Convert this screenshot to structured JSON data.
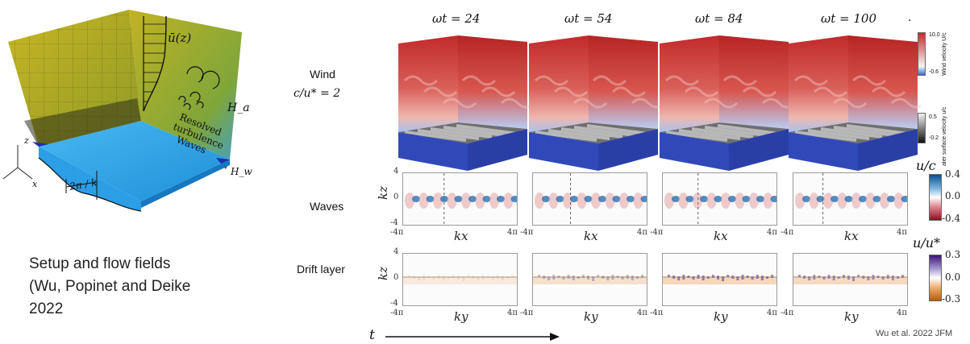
{
  "setup": {
    "labels": {
      "profile": "ū(z)",
      "resolved": "Resolved",
      "turbulence": "turbulence",
      "waves": "Waves",
      "Ha": "H_a",
      "Hw": "H_w",
      "wavelength": "2π / k",
      "axis_z": "z",
      "axis_x": "x"
    },
    "colors": {
      "box_wall": "#b8ae22",
      "water": "#2ea4e8"
    }
  },
  "caption": {
    "line1": "Setup and flow fields",
    "line2": "(Wu, Popinet and Deike",
    "line3": "2022"
  },
  "times": [
    "ωt = 24",
    "ωt = 54",
    "ωt = 84",
    "ωt = 100"
  ],
  "rows": {
    "wind": {
      "label": "Wind",
      "sublabel": "c/u* = 2"
    },
    "waves": {
      "label": "Waves"
    },
    "drift": {
      "label": "Drift layer"
    }
  },
  "axes": {
    "waves": {
      "ylabel": "kz",
      "xlabel": "kx",
      "yticks": [
        "4",
        "0",
        "-4"
      ],
      "xmin": "-4π",
      "xmax": "4π"
    },
    "drift": {
      "ylabel": "kz",
      "xlabel": "ky",
      "yticks": [
        "4",
        "0",
        "-4"
      ],
      "xmin": "-4π",
      "xmax": "4π"
    }
  },
  "colorbars": {
    "wind": {
      "title": "Wind velocity U/c",
      "max": "10.0",
      "min": "-0.6",
      "colors": [
        "#c72a2a",
        "#f4f4f4",
        "#3b67d6"
      ]
    },
    "surface": {
      "title": "ater surface velocity u/c",
      "max": "0.5",
      "min": "-0.2",
      "colors": [
        "#f2f2f2",
        "#111111"
      ]
    },
    "waves": {
      "title": "u/c",
      "ticks": [
        "0.4",
        "0.0",
        "-0.4"
      ],
      "colors": [
        "#0a4e93",
        "#ffffff",
        "#8e1020"
      ]
    },
    "drift": {
      "title": "u/u*",
      "ticks": [
        "0.3",
        "0.0",
        "-0.3"
      ],
      "colors": [
        "#3d1279",
        "#ffffff",
        "#b65a07"
      ]
    }
  },
  "time_axis": {
    "label": "t"
  },
  "credit": "Wu et al. 2022 JFM",
  "stray_mark": "."
}
